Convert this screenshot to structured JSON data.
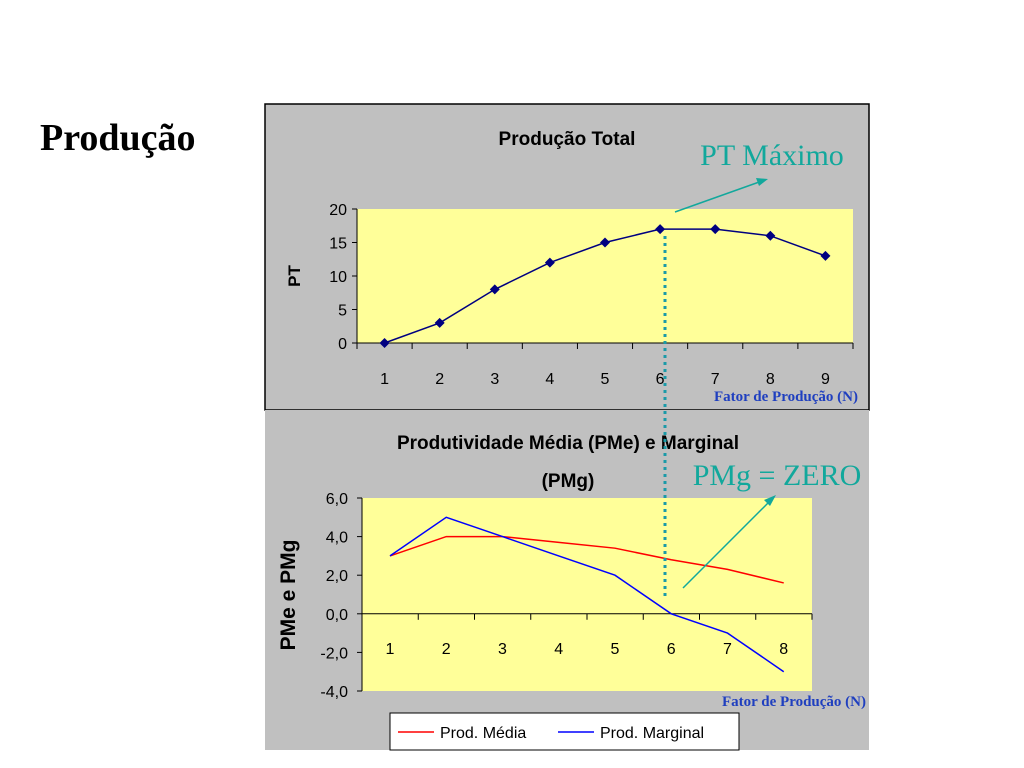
{
  "slide": {
    "title": "Produção"
  },
  "annotations": {
    "pt_max": "PT Máximo",
    "pmg_zero": "PMg = ZERO",
    "x_caption_top": "Fator de Produção (N)",
    "x_caption_bottom": "Fator de Produção (N)"
  },
  "colors": {
    "plot_bg": "#ffff99",
    "panel_bg": "#c0c0c0",
    "pt_line": "#000080",
    "pme_line": "#ff0000",
    "pmg_line": "#0000ff",
    "annotation": "#12a89c",
    "dotted": "#1a9aa8"
  },
  "chart_data": [
    {
      "type": "line",
      "title": "Produção Total",
      "xlabel": "",
      "ylabel": "PT",
      "x": [
        1,
        2,
        3,
        4,
        5,
        6,
        7,
        8,
        9
      ],
      "series": [
        {
          "values": [
            0,
            3,
            8,
            12,
            15,
            17,
            17,
            16,
            13
          ]
        }
      ],
      "ylim": [
        0,
        20
      ],
      "yticks": [
        "0",
        "5",
        "10",
        "15",
        "20"
      ],
      "xticks": [
        "1",
        "2",
        "3",
        "4",
        "5",
        "6",
        "7",
        "8",
        "9"
      ],
      "markers": "diamond",
      "legend": false
    },
    {
      "type": "line",
      "title": "Produtividade Média (PMe) e Marginal (PMg)",
      "title_lines": [
        "Produtividade Média (PMe) e Marginal",
        "(PMg)"
      ],
      "xlabel": "",
      "ylabel": "PMe e PMg",
      "x": [
        1,
        2,
        3,
        4,
        5,
        6,
        7,
        8
      ],
      "series": [
        {
          "name": "Prod. Média",
          "values": [
            3.0,
            4.0,
            4.0,
            3.7,
            3.4,
            2.8,
            2.3,
            1.6
          ]
        },
        {
          "name": "Prod. Marginal",
          "values": [
            3.0,
            5.0,
            4.0,
            3.0,
            2.0,
            0.0,
            -1.0,
            -3.0
          ]
        }
      ],
      "ylim": [
        -4.0,
        6.0
      ],
      "yticks": [
        "-4,0",
        "-2,0",
        "0,0",
        "2,0",
        "4,0",
        "6,0"
      ],
      "xticks": [
        "1",
        "2",
        "3",
        "4",
        "5",
        "6",
        "7",
        "8"
      ],
      "legend": "bottom"
    }
  ]
}
